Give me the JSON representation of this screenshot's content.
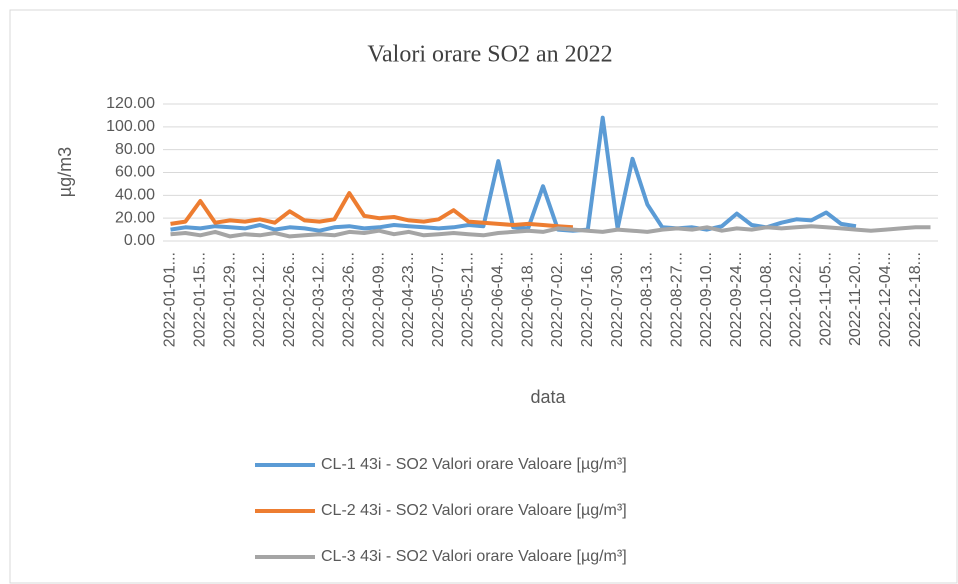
{
  "chart_data": {
    "type": "line",
    "title": "Valori orare SO2 an 2022",
    "x_label": "data",
    "y_label": "µg/m3",
    "categories": [
      "2022-01-01...",
      null,
      "2022-01-15...",
      null,
      "2022-01-29...",
      null,
      "2022-02-12...",
      null,
      "2022-02-26...",
      null,
      "2022-03-12...",
      null,
      "2022-03-26...",
      null,
      "2022-04-09...",
      null,
      "2022-04-23...",
      null,
      "2022-05-07...",
      null,
      "2022-05-21...",
      null,
      "2022-06-04...",
      null,
      "2022-06-18...",
      null,
      "2022-07-02...",
      null,
      "2022-07-16...",
      null,
      "2022-07-30...",
      null,
      "2022-08-13...",
      null,
      "2022-08-27...",
      null,
      "2022-09-10...",
      null,
      "2022-09-24...",
      null,
      "2022-10-08...",
      null,
      "2022-10-22...",
      null,
      "2022-11-05...",
      null,
      "2022-11-20...",
      null,
      "2022-12-04...",
      null,
      "2022-12-18...",
      null
    ],
    "series": [
      {
        "name": "CL-1 43i - SO2 Valori orare Valoare [µg/m³]",
        "color": "#5b9bd5",
        "values": [
          10,
          12,
          11,
          13,
          12,
          11,
          14,
          10,
          12,
          11,
          9,
          12,
          13,
          11,
          12,
          14,
          13,
          12,
          11,
          12,
          14,
          13,
          70,
          12,
          11,
          48,
          10,
          9,
          10,
          108,
          11,
          72,
          32,
          12,
          11,
          12,
          10,
          13,
          24,
          14,
          12,
          16,
          19,
          18,
          25,
          15,
          13,
          null,
          null,
          null,
          null,
          null
        ]
      },
      {
        "name": "CL-2 43i - SO2 Valori orare Valoare [µg/m³]",
        "color": "#ed7d31",
        "values": [
          15,
          17,
          35,
          16,
          18,
          17,
          19,
          16,
          26,
          18,
          17,
          19,
          42,
          22,
          20,
          21,
          18,
          17,
          19,
          27,
          17,
          16,
          15,
          14,
          15,
          14,
          13,
          12,
          null,
          null,
          null,
          null,
          null,
          null,
          null,
          null,
          null,
          null,
          null,
          null,
          null,
          null,
          null,
          null,
          null,
          null,
          null,
          null,
          null,
          null,
          null,
          null
        ]
      },
      {
        "name": "CL-3 43i - SO2 Valori orare Valoare [µg/m³]",
        "color": "#a5a5a5",
        "values": [
          6,
          7,
          5,
          8,
          4,
          6,
          5,
          7,
          4,
          5,
          6,
          5,
          8,
          7,
          9,
          6,
          8,
          5,
          6,
          7,
          6,
          5,
          7,
          8,
          9,
          8,
          11,
          10,
          9,
          8,
          10,
          9,
          8,
          10,
          11,
          10,
          12,
          9,
          11,
          10,
          12,
          11,
          12,
          13,
          12,
          11,
          10,
          9,
          10,
          11,
          12,
          12
        ]
      }
    ],
    "ylim": [
      0,
      120
    ],
    "yticks": [
      {
        "value": 0,
        "label": "0.00"
      },
      {
        "value": 20,
        "label": "20.00"
      },
      {
        "value": 40,
        "label": "40.00"
      },
      {
        "value": 60,
        "label": "60.00"
      },
      {
        "value": 80,
        "label": "80.00"
      },
      {
        "value": 100,
        "label": "100.00"
      },
      {
        "value": 120,
        "label": "120.00"
      }
    ],
    "grid": true,
    "legend": "bottom"
  }
}
